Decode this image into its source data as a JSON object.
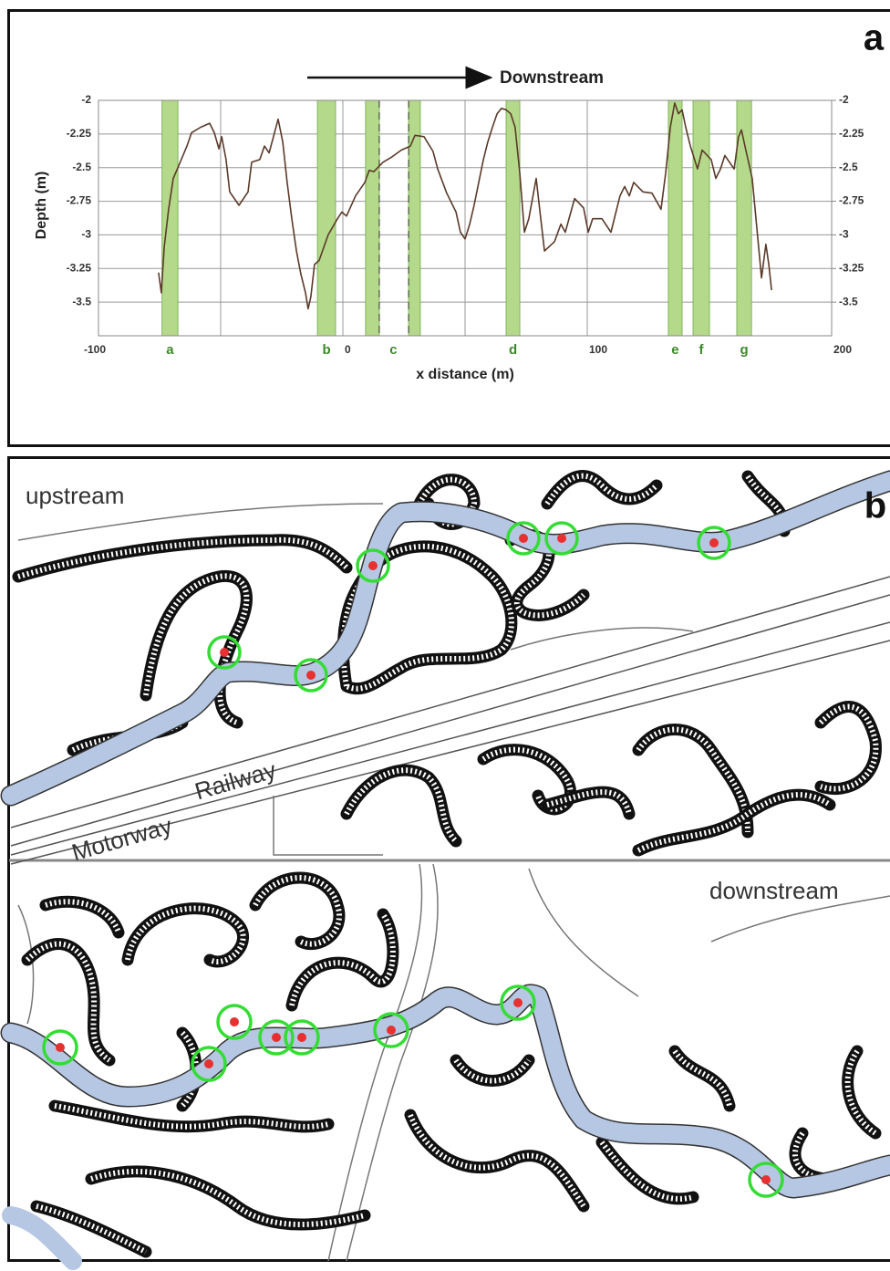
{
  "chart_data": {
    "type": "line",
    "annotation": "Downstream",
    "x_label": "x distance (m)",
    "y_label": "Depth (m)",
    "panel_label": "a",
    "color": "#5b3a29",
    "band_color": "#b5d98a",
    "xlim": [
      -100,
      200
    ],
    "xticks": [
      -100,
      0,
      100,
      200
    ],
    "x_gridlines": [
      -50,
      50,
      150
    ],
    "ylim": [
      -3.75,
      -2
    ],
    "yticks": [
      -2,
      -2.25,
      -2.5,
      -2.75,
      -3,
      -3.25,
      -3.5
    ],
    "y2lim": [
      -3.75,
      -2
    ],
    "y2ticks": [
      -2,
      -2.25,
      -2.5,
      -2.75,
      -3,
      -3.25,
      -3.5
    ],
    "grid": true,
    "bands": [
      {
        "label": "a",
        "ranges": [
          [
            -74,
            -67.5
          ]
        ]
      },
      {
        "label": "b",
        "ranges": [
          [
            -10.4,
            -3
          ]
        ]
      },
      {
        "label": "c",
        "ranges": [
          [
            9.3,
            14.9
          ],
          [
            26.9,
            31.7
          ]
        ]
      },
      {
        "label": "d",
        "ranges": [
          [
            66.8,
            72.4
          ]
        ]
      },
      {
        "label": "e",
        "ranges": [
          [
            133.2,
            138.8
          ]
        ]
      },
      {
        "label": "f",
        "ranges": [
          [
            143.3,
            150
          ]
        ]
      },
      {
        "label": "g",
        "ranges": [
          [
            161.2,
            167.2
          ]
        ]
      }
    ],
    "x": [
      -75.4,
      -74.3,
      -73.1,
      -71.3,
      -69.4,
      -67.5,
      -63.8,
      -61.9,
      -58.2,
      -54.5,
      -52.6,
      -50.7,
      -49.6,
      -47.8,
      -46.3,
      -42.5,
      -38.8,
      -37.3,
      -34.0,
      -32.1,
      -30.2,
      -28.4,
      -26.5,
      -24.6,
      -22.8,
      -20.9,
      -19.0,
      -17.2,
      -15.3,
      -14.2,
      -13.1,
      -11.6,
      -9.7,
      -6.0,
      -2.2,
      -0.4,
      1.5,
      5.2,
      9.0,
      10.8,
      12.7,
      16.4,
      20.1,
      23.9,
      27.6,
      29.5,
      33.2,
      36.9,
      38.8,
      42.5,
      46.3,
      48.1,
      50.0,
      51.9,
      53.7,
      55.6,
      57.5,
      59.3,
      61.2,
      63.1,
      64.9,
      66.8,
      68.7,
      70.5,
      72.4,
      74.3,
      76.1,
      79.1,
      80.6,
      82.5,
      86.6,
      89.2,
      91.0,
      94.8,
      98.5,
      100.4,
      102.2,
      106.0,
      109.7,
      113.4,
      115.3,
      117.2,
      119.0,
      122.8,
      126.5,
      130.2,
      132.1,
      134.0,
      135.8,
      137.3,
      138.8,
      140.3,
      142.2,
      145.1,
      147.0,
      150.7,
      152.6,
      154.5,
      156.3,
      160.1,
      161.9,
      163.1,
      164.9,
      167.5,
      169.4,
      171.3,
      173.1,
      174.3,
      175.4
    ],
    "values": [
      -3.28,
      -3.43,
      -3.09,
      -2.81,
      -2.58,
      -2.5,
      -2.34,
      -2.24,
      -2.2,
      -2.17,
      -2.24,
      -2.36,
      -2.27,
      -2.44,
      -2.68,
      -2.78,
      -2.68,
      -2.46,
      -2.44,
      -2.34,
      -2.39,
      -2.27,
      -2.14,
      -2.31,
      -2.61,
      -2.88,
      -3.12,
      -3.29,
      -3.43,
      -3.55,
      -3.46,
      -3.22,
      -3.19,
      -3.0,
      -2.88,
      -2.83,
      -2.86,
      -2.71,
      -2.61,
      -2.52,
      -2.53,
      -2.46,
      -2.42,
      -2.37,
      -2.34,
      -2.26,
      -2.27,
      -2.38,
      -2.51,
      -2.69,
      -2.83,
      -2.98,
      -3.03,
      -2.92,
      -2.78,
      -2.61,
      -2.44,
      -2.31,
      -2.2,
      -2.1,
      -2.06,
      -2.07,
      -2.1,
      -2.2,
      -2.54,
      -2.98,
      -2.88,
      -2.58,
      -2.82,
      -3.12,
      -3.05,
      -2.92,
      -2.98,
      -2.73,
      -2.8,
      -2.98,
      -2.88,
      -2.88,
      -2.98,
      -2.71,
      -2.64,
      -2.71,
      -2.61,
      -2.68,
      -2.69,
      -2.81,
      -2.54,
      -2.2,
      -2.02,
      -2.1,
      -2.07,
      -2.2,
      -2.34,
      -2.51,
      -2.37,
      -2.44,
      -2.58,
      -2.51,
      -2.41,
      -2.51,
      -2.27,
      -2.22,
      -2.37,
      -2.58,
      -2.95,
      -3.32,
      -3.07,
      -3.22,
      -3.41
    ]
  },
  "map": {
    "panel_label": "b",
    "upper_label": "upstream",
    "lower_label": "downstream",
    "railway": "Railway",
    "motorway": "Motorway"
  }
}
